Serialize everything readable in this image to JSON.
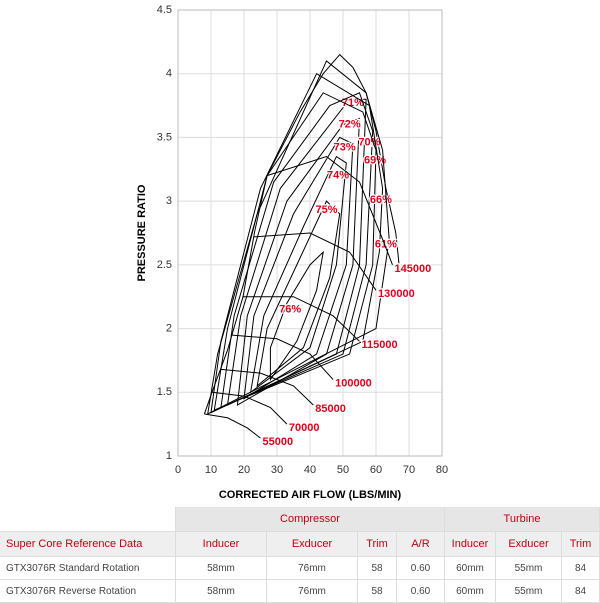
{
  "chart_data": {
    "type": "line",
    "xlabel": "CORRECTED AIR FLOW (LBS/MIN)",
    "ylabel": "PRESSURE RATIO",
    "xlim": [
      0,
      80
    ],
    "xticks": [
      0,
      10,
      20,
      30,
      40,
      50,
      60,
      70,
      80
    ],
    "ylim": [
      1,
      4.5
    ],
    "yticks": [
      1,
      1.5,
      2,
      2.5,
      3,
      3.5,
      4,
      4.5
    ],
    "grid": true,
    "line_color": "#000000",
    "label_color": "#e0001b",
    "surge_line": {
      "x": [
        8,
        10.3,
        15,
        19.7,
        23.3,
        27,
        37,
        44,
        49,
        53,
        57,
        60,
        63,
        66,
        67
      ],
      "y": [
        1.33,
        1.5,
        1.83,
        2.25,
        2.77,
        3.2,
        3.7,
        4.0,
        4.15,
        4.05,
        3.85,
        3.55,
        3.1,
        2.75,
        2.5
      ]
    },
    "speed_lines": [
      {
        "name": "55000",
        "x": [
          8,
          15,
          21,
          25
        ],
        "y": [
          1.33,
          1.3,
          1.22,
          1.14
        ]
      },
      {
        "name": "70000",
        "x": [
          10.3,
          20,
          28,
          33
        ],
        "y": [
          1.5,
          1.47,
          1.38,
          1.25
        ]
      },
      {
        "name": "85000",
        "x": [
          13,
          25,
          35,
          41
        ],
        "y": [
          1.68,
          1.65,
          1.55,
          1.4
        ]
      },
      {
        "name": "100000",
        "x": [
          16,
          30,
          40,
          47
        ],
        "y": [
          1.95,
          1.92,
          1.8,
          1.6
        ]
      },
      {
        "name": "115000",
        "x": [
          19.5,
          35,
          47,
          55
        ],
        "y": [
          2.25,
          2.25,
          2.1,
          1.9
        ]
      },
      {
        "name": "130000",
        "x": [
          23,
          40,
          52,
          60
        ],
        "y": [
          2.72,
          2.75,
          2.6,
          2.3
        ]
      },
      {
        "name": "145000",
        "x": [
          27,
          45,
          55,
          62,
          65
        ],
        "y": [
          3.2,
          3.35,
          3.15,
          2.7,
          2.5
        ]
      }
    ],
    "efficiency_islands": [
      {
        "name": "76%",
        "label_at": [
          34,
          2.15
        ],
        "x": [
          28,
          36,
          42,
          44,
          40,
          33,
          28
        ],
        "y": [
          1.6,
          1.9,
          2.3,
          2.6,
          2.5,
          2.2,
          1.85
        ]
      },
      {
        "name": "75%",
        "label_at": [
          45,
          2.93
        ],
        "x": [
          24,
          38,
          46,
          49,
          45,
          36,
          27
        ],
        "y": [
          1.55,
          1.85,
          2.4,
          2.9,
          3.0,
          2.5,
          2.0
        ]
      },
      {
        "name": "74%",
        "label_at": [
          48.5,
          3.2
        ],
        "x": [
          22,
          40,
          48,
          51,
          48,
          38,
          26
        ],
        "y": [
          1.5,
          1.85,
          2.5,
          3.3,
          3.35,
          2.8,
          2.1
        ]
      },
      {
        "name": "73%",
        "label_at": [
          50.5,
          3.42
        ],
        "x": [
          20,
          42,
          51,
          53,
          49,
          35,
          23
        ],
        "y": [
          1.45,
          1.8,
          2.5,
          3.45,
          3.5,
          2.9,
          2.1
        ]
      },
      {
        "name": "72%",
        "label_at": [
          52,
          3.6
        ],
        "x": [
          18,
          45,
          53,
          55,
          50,
          33,
          21
        ],
        "y": [
          1.4,
          1.8,
          2.5,
          3.65,
          3.6,
          3.0,
          2.1
        ]
      },
      {
        "name": "71%",
        "label_at": [
          53,
          3.77
        ],
        "x": [
          15,
          48,
          55,
          57,
          52,
          31,
          19
        ],
        "y": [
          1.4,
          1.8,
          2.5,
          3.8,
          3.8,
          3.1,
          2.1
        ]
      },
      {
        "name": "70%",
        "label_at": [
          58,
          3.46
        ],
        "x": [
          13,
          50,
          57,
          59,
          55,
          46,
          29,
          17
        ],
        "y": [
          1.38,
          1.8,
          2.5,
          3.55,
          3.85,
          3.75,
          3.15,
          2.1
        ]
      },
      {
        "name": "69%",
        "label_at": [
          59.7,
          3.32
        ],
        "x": [
          11,
          52,
          59,
          60,
          56,
          44,
          27,
          15
        ],
        "y": [
          1.36,
          1.8,
          2.5,
          3.4,
          3.7,
          3.85,
          3.2,
          2.0
        ]
      },
      {
        "name": "66%",
        "label_at": [
          61.5,
          3.01
        ],
        "x": [
          10,
          56,
          61,
          62,
          58,
          42,
          25,
          13
        ],
        "y": [
          1.34,
          1.9,
          2.6,
          3.1,
          3.75,
          4.0,
          3.1,
          1.9
        ]
      },
      {
        "name": "61%",
        "label_at": [
          63,
          2.66
        ],
        "x": [
          9,
          60,
          64,
          62,
          57,
          45,
          24,
          12
        ],
        "y": [
          1.33,
          2.0,
          2.7,
          3.4,
          3.85,
          4.1,
          2.9,
          1.8
        ]
      }
    ]
  },
  "table": {
    "group_headers": [
      "Compressor",
      "Turbine"
    ],
    "columns": [
      "Super Core Reference Data",
      "Inducer",
      "Exducer",
      "Trim",
      "A/R",
      "Inducer",
      "Exducer",
      "Trim"
    ],
    "rows": [
      [
        "GTX3076R  Standard Rotation",
        "58mm",
        "76mm",
        "58",
        "0.60",
        "60mm",
        "55mm",
        "84"
      ],
      [
        "GTX3076R  Reverse Rotation",
        "58mm",
        "76mm",
        "58",
        "0.60",
        "60mm",
        "55mm",
        "84"
      ]
    ]
  }
}
